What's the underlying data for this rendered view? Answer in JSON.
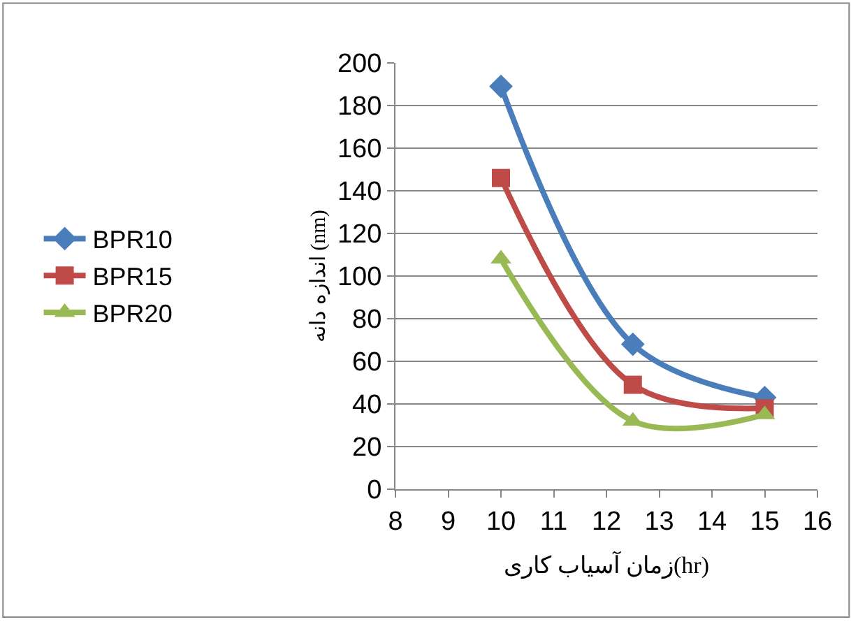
{
  "chart_data": {
    "type": "line",
    "xlabel": "زمان آسیاب کاری(hr)",
    "ylabel": "اندازه دانه (nm)",
    "x": [
      10,
      12.5,
      15
    ],
    "series": [
      {
        "name": "BPR10",
        "color": "#4a7ebb",
        "values": [
          189,
          68,
          43
        ],
        "marker": "diamond"
      },
      {
        "name": "BPR15",
        "color": "#be4b48",
        "values": [
          146,
          49,
          38
        ],
        "marker": "square"
      },
      {
        "name": "BPR20",
        "color": "#98b954",
        "values": [
          108,
          32,
          35
        ],
        "marker": "triangle"
      }
    ],
    "xlim": [
      8,
      16
    ],
    "xticks": [
      8,
      9,
      10,
      11,
      12,
      13,
      14,
      15,
      16
    ],
    "ylim": [
      0,
      200
    ],
    "yticks": [
      0,
      20,
      40,
      60,
      80,
      100,
      120,
      140,
      160,
      180,
      200
    ],
    "grid": "y",
    "legend": "left",
    "line_style": "solid"
  }
}
